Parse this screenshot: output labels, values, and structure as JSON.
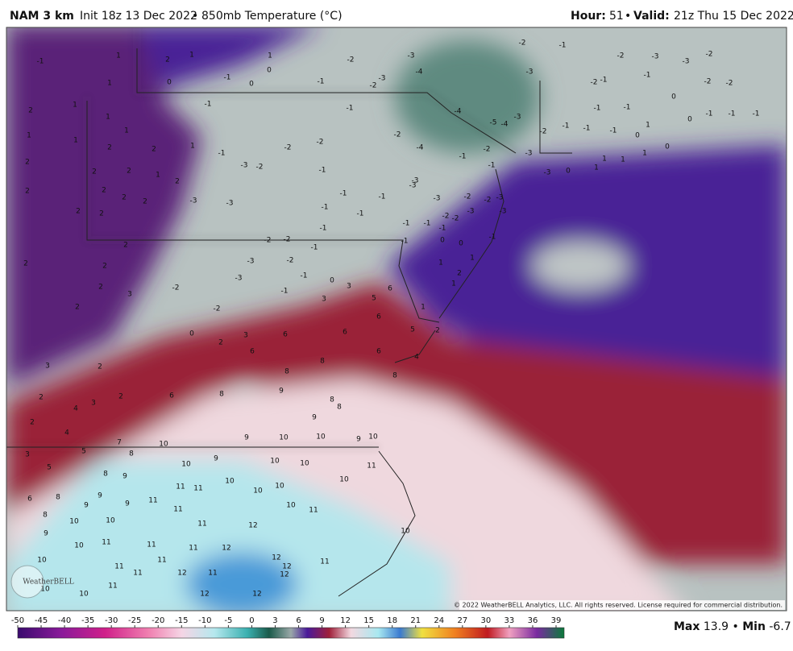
{
  "header": {
    "model": "NAM 3 km",
    "init": "Init 18z 13 Dec 2022",
    "separator": "•",
    "field": "850mb Temperature (°C)",
    "hour_label": "Hour:",
    "hour": "51",
    "valid_label": "Valid:",
    "valid": "21z Thu 15 Dec 2022"
  },
  "map": {
    "labels": [
      -1,
      1,
      2,
      1,
      1,
      0,
      -1,
      0,
      1,
      0,
      -1,
      -2,
      -2,
      -3,
      -3,
      -4,
      -2,
      -3,
      -1,
      -2,
      -3,
      -3,
      -2,
      -2,
      -2,
      -2,
      -1,
      -1,
      0,
      2,
      1,
      1,
      1,
      1,
      1,
      -1,
      -1,
      -4,
      -5,
      -4,
      -3,
      -1,
      -1,
      0,
      -1,
      -1,
      -1,
      -1,
      -2,
      -1,
      -1,
      0,
      1,
      0,
      2,
      2,
      2,
      1,
      -2,
      -2,
      -2,
      -4,
      -1,
      -2,
      -1,
      -3,
      -3,
      0,
      1,
      1,
      1,
      1,
      -1,
      -3,
      -2,
      -1,
      2,
      2,
      1,
      2,
      2,
      2,
      2,
      2,
      -3,
      -3,
      -1,
      -1,
      -3,
      -3,
      -3,
      -2,
      -2,
      -3,
      -3,
      -3,
      -2,
      -1,
      -2,
      -1,
      -1,
      -1,
      -1,
      -1,
      2,
      2,
      2,
      2,
      2,
      -3,
      -2,
      -2,
      -1,
      -2,
      -3,
      -2,
      2,
      3,
      -1,
      -1,
      -1,
      0,
      0,
      -1,
      1,
      1,
      2,
      1,
      2,
      -2,
      0,
      2,
      3,
      3,
      0,
      3,
      5,
      6,
      6,
      1,
      5,
      2,
      6,
      6,
      6,
      4,
      6,
      8,
      8,
      3,
      2,
      2,
      4,
      3,
      2,
      6,
      8,
      8,
      9,
      8,
      8,
      9,
      9,
      2,
      4,
      5,
      7,
      8,
      10,
      9,
      10,
      10,
      10,
      3,
      5,
      8,
      9,
      10,
      9,
      10,
      10,
      11,
      6,
      8,
      9,
      9,
      9,
      11,
      11,
      11,
      10,
      10,
      10,
      10,
      8,
      10,
      10,
      11,
      10,
      11,
      9,
      10,
      11,
      11,
      11,
      12,
      10,
      10,
      11,
      11,
      11,
      12,
      11,
      12,
      12,
      11,
      12,
      11,
      12,
      11,
      10,
      10,
      12,
      12
    ]
  },
  "copyright": "© 2022 WeatherBELL Analytics, LLC. All rights reserved. License required for commercial distribution.",
  "logo": "WeatherBELL",
  "colorbar": {
    "ticks": [
      -50,
      -45,
      -40,
      -35,
      -30,
      -25,
      -20,
      -15,
      -10,
      -5,
      0,
      3,
      6,
      9,
      12,
      15,
      18,
      21,
      24,
      27,
      30,
      33,
      36,
      39
    ]
  },
  "stats": {
    "max_label": "Max",
    "max": "13.9",
    "min_label": "Min",
    "min": "-6.7"
  }
}
